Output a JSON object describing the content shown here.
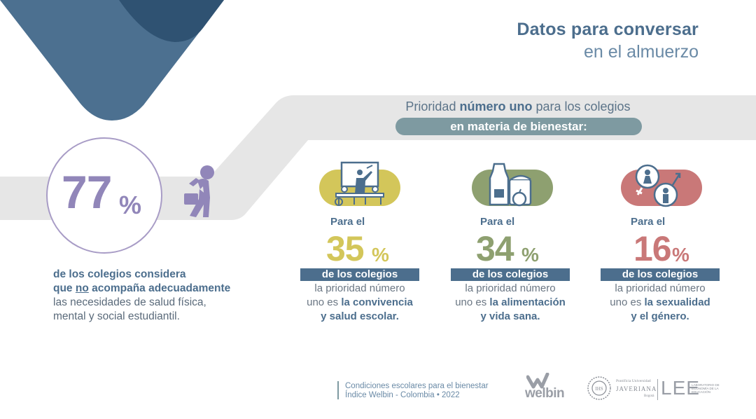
{
  "title": {
    "line1": "Datos para conversar",
    "line2": "en el almuerzo"
  },
  "priority": {
    "pre": "Prioridad ",
    "bold": "número uno",
    "post": " para los colegios",
    "pill": "en materia de bienestar:"
  },
  "main_stat": {
    "number": "77",
    "percent_sign": "%",
    "line1": "de los colegios considera",
    "line2_pre": "que ",
    "line2_underline": "no",
    "line2_post": " acompaña adecuadamente",
    "line3": "las necesidades de salud física,",
    "line4": "mental y social estudiantil."
  },
  "stats": [
    {
      "para": "Para el",
      "number": "35",
      "percent_sign": "%",
      "band": "de los colegios",
      "desc1": "la prioridad número",
      "desc2_pre": "uno es ",
      "desc2_bold": "la convivencia",
      "desc3": "y salud escolar.",
      "color": "#d3c65a",
      "icon": "classroom-icon"
    },
    {
      "para": "Para el",
      "number": "34",
      "percent_sign": "%",
      "band": "de los colegios",
      "desc1": "la prioridad número",
      "desc2_pre": "uno es ",
      "desc2_bold": "la alimentación",
      "desc3": "y vida sana.",
      "color": "#8ea070",
      "icon": "food-icon"
    },
    {
      "para": "Para el",
      "number": "16",
      "percent_sign": "%",
      "band": "de los colegios",
      "desc1": "la prioridad número",
      "desc2_pre": "uno es ",
      "desc2_bold": "la sexualidad",
      "desc3": "y el género.",
      "color": "#c97878",
      "icon": "gender-icon"
    }
  ],
  "footer": {
    "line1": "Condiciones escolares para el bienestar",
    "line2": "Índice Welbin - Colombia • 2022",
    "welbin": "welbin",
    "javeriana_small": "Pontificia Universidad",
    "javeriana": "JAVERIANA",
    "javeriana_city": "Bogotá",
    "lee": "LEE",
    "lee_sub": "LABORATORIO DE ECONOMÍA DE LA EDUCACIÓN"
  },
  "colors": {
    "navy": "#4c6e8d",
    "purple": "#9186b9",
    "teal_pill": "#7e9aa1",
    "gray_band": "#e6e6e6",
    "dark_triangle": "#2f5272"
  }
}
